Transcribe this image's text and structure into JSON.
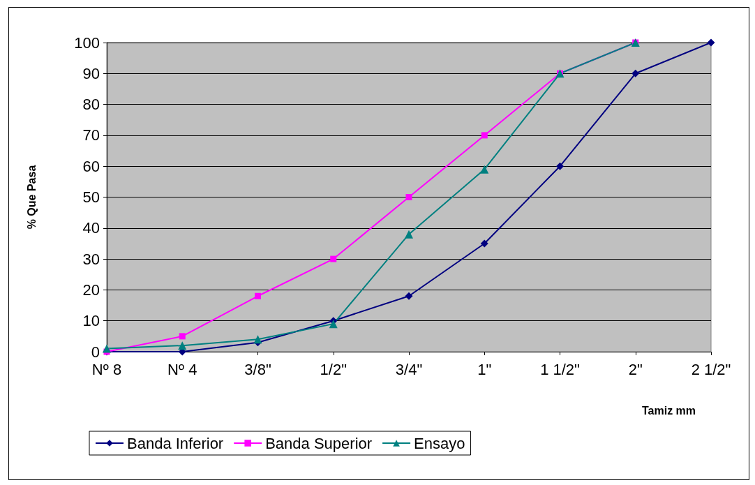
{
  "chart_data": {
    "type": "line",
    "xlabel": "Tamiz mm",
    "ylabel": "% Que Pasa",
    "categories": [
      "Nº 8",
      "Nº 4",
      "3/8\"",
      "1/2\"",
      "3/4\"",
      "1\"",
      "1 1/2\"",
      "2\"",
      "2 1/2\""
    ],
    "series": [
      {
        "name": "Banda Inferior",
        "color": "#000080",
        "marker": "diamond",
        "values": [
          0,
          0,
          3,
          10,
          18,
          35,
          60,
          90,
          100
        ]
      },
      {
        "name": "Banda Superior",
        "color": "#ff00ff",
        "marker": "square",
        "values": [
          0,
          5,
          18,
          30,
          50,
          70,
          90,
          100,
          null
        ]
      },
      {
        "name": "Ensayo",
        "color": "#008080",
        "marker": "triangle",
        "values": [
          1,
          2,
          4,
          9,
          38,
          59,
          90,
          100,
          null
        ]
      }
    ],
    "ylim": [
      0,
      100
    ],
    "yticks": [
      0,
      10,
      20,
      30,
      40,
      50,
      60,
      70,
      80,
      90,
      100
    ],
    "grid": "y",
    "legend": "bottom",
    "line_style": "solid"
  }
}
